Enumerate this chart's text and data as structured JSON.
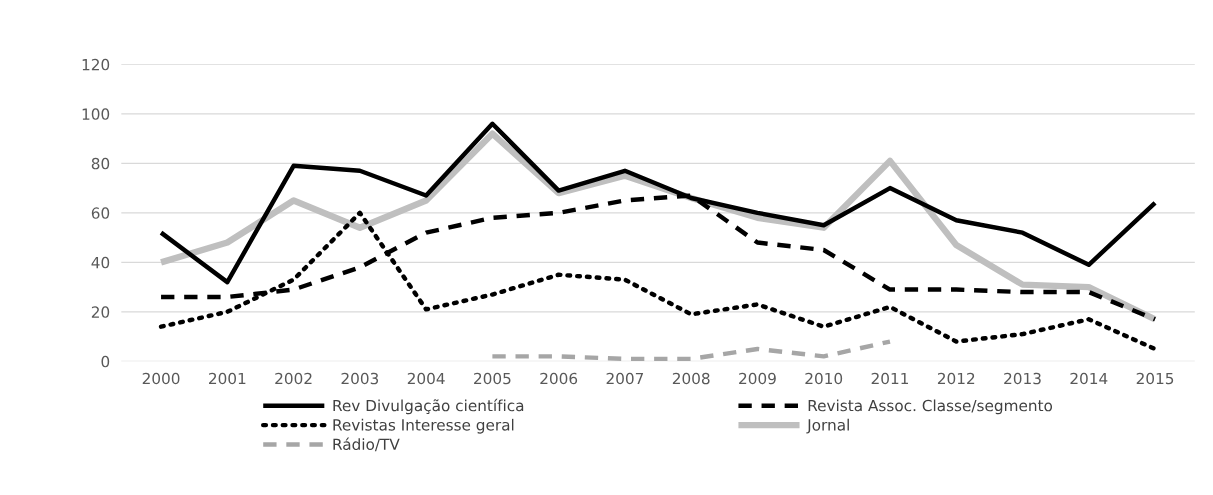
{
  "chart_data": {
    "type": "line",
    "categories": [
      "2000",
      "2001",
      "2002",
      "2003",
      "2004",
      "2005",
      "2006",
      "2007",
      "2008",
      "2009",
      "2010",
      "2011",
      "2012",
      "2013",
      "2014",
      "2015"
    ],
    "series": [
      {
        "name": "Rev Divulgação científica",
        "color": "#000000",
        "line_style": "solid",
        "values": [
          52,
          32,
          79,
          77,
          67,
          96,
          69,
          77,
          66,
          60,
          55,
          70,
          57,
          52,
          39,
          64
        ]
      },
      {
        "name": "Revista Assoc. Classe/segmento",
        "color": "#000000",
        "line_style": "dashed",
        "values": [
          26,
          26,
          29,
          38,
          52,
          58,
          60,
          65,
          67,
          48,
          45,
          29,
          29,
          28,
          28,
          17
        ]
      },
      {
        "name": "Revistas Interesse geral",
        "color": "#000000",
        "line_style": "dotted",
        "values": [
          14,
          20,
          33,
          60,
          21,
          27,
          35,
          33,
          19,
          23,
          14,
          22,
          8,
          11,
          17,
          5
        ]
      },
      {
        "name": "Jornal",
        "color": "#bfbfbf",
        "line_style": "solid",
        "values": [
          40,
          48,
          65,
          54,
          65,
          92,
          68,
          75,
          66,
          58,
          54,
          81,
          47,
          31,
          30,
          17
        ]
      },
      {
        "name": "Rádio/TV",
        "color": "#a6a6a6",
        "line_style": "dashed",
        "values": [
          null,
          null,
          null,
          null,
          null,
          2,
          2,
          1,
          1,
          5,
          2,
          8,
          null,
          null,
          null,
          null
        ]
      }
    ],
    "ylim": [
      0,
      120
    ],
    "yticks": [
      0,
      20,
      40,
      60,
      80,
      100,
      120
    ],
    "grid": "y",
    "legend": "bottom",
    "marker": "none"
  }
}
